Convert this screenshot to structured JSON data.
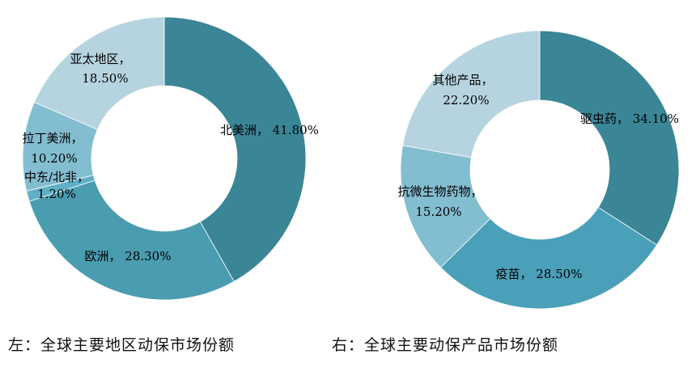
{
  "chart_data": [
    {
      "type": "pie",
      "title": "左：全球主要地区动保市场份额",
      "slices": [
        {
          "name": "北美洲",
          "value": 41.8,
          "label": "41.80%",
          "color": "#3a8596"
        },
        {
          "name": "欧洲",
          "value": 28.3,
          "label": "28.30%",
          "color": "#4a9cb0"
        },
        {
          "name": "中东/北非",
          "value": 1.2,
          "label": "1.20%",
          "color": "#5fb0c6"
        },
        {
          "name": "拉丁美洲",
          "value": 10.2,
          "label": "10.20%",
          "color": "#83bdd0"
        },
        {
          "name": "亚太地区",
          "value": 18.5,
          "label": "18.50%",
          "color": "#b6d4e0"
        }
      ]
    },
    {
      "type": "pie",
      "title": "右：全球主要动保产品市场份额",
      "slices": [
        {
          "name": "驱虫药",
          "value": 34.1,
          "label": "34.10%",
          "color": "#3a8596"
        },
        {
          "name": "疫苗",
          "value": 28.5,
          "label": "28.50%",
          "color": "#4aa0b8"
        },
        {
          "name": "抗微生物药物",
          "value": 15.2,
          "label": "15.20%",
          "color": "#83bdd0"
        },
        {
          "name": "其他产品",
          "value": 22.2,
          "label": "22.20%",
          "color": "#b6d4e0"
        }
      ]
    }
  ]
}
